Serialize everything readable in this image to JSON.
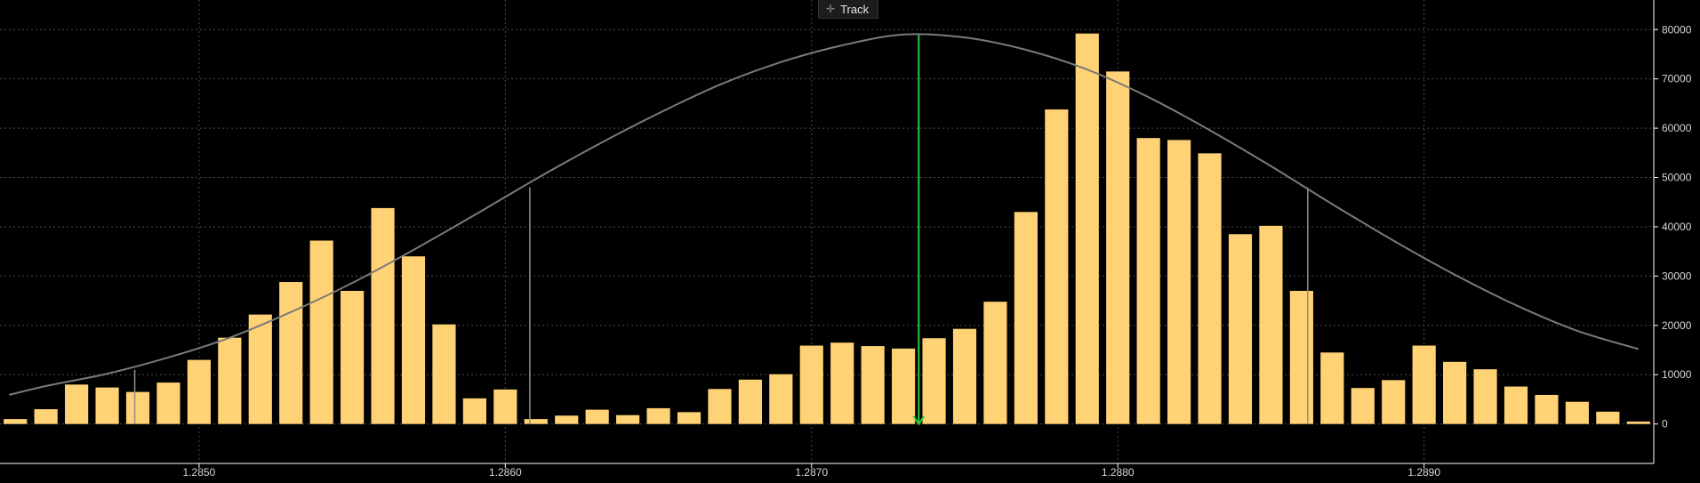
{
  "toolbar": {
    "track_label": "Track",
    "track_icon": "crosshair-icon"
  },
  "colors": {
    "bar": "#FFD275",
    "curve": "#7a7a7a",
    "marker": "#2ecc40",
    "bands": "#8f8f8f",
    "axis": "#ffffff",
    "background": "#000000"
  },
  "chart_data": {
    "type": "bar",
    "title": "",
    "xlabel": "",
    "ylabel": "",
    "x_tick_labels": [
      "1.2850",
      "1.2860",
      "1.2870",
      "1.2880",
      "1.2890"
    ],
    "x_ticks": [
      1.285,
      1.286,
      1.287,
      1.288,
      1.289
    ],
    "y_tick_labels": [
      "0",
      "10000",
      "20000",
      "30000",
      "40000",
      "50000",
      "60000",
      "70000",
      "80000"
    ],
    "ylim": [
      -8000,
      86000
    ],
    "xlim": [
      1.28435,
      1.28975
    ],
    "grid": true,
    "bars": {
      "x": [
        1.2844,
        1.2845,
        1.2846,
        1.2847,
        1.2848,
        1.2849,
        1.285,
        1.2851,
        1.2852,
        1.2853,
        1.2854,
        1.2855,
        1.2856,
        1.2857,
        1.2858,
        1.2859,
        1.286,
        1.2861,
        1.2862,
        1.2863,
        1.2864,
        1.2865,
        1.2866,
        1.2867,
        1.2868,
        1.2869,
        1.287,
        1.2871,
        1.2872,
        1.2873,
        1.2874,
        1.2875,
        1.2876,
        1.2877,
        1.2878,
        1.2879,
        1.288,
        1.2881,
        1.2882,
        1.2883,
        1.2884,
        1.2885,
        1.2886,
        1.2887,
        1.2888,
        1.2889,
        1.289,
        1.2891,
        1.2892,
        1.2893,
        1.2894,
        1.2895,
        1.2896,
        1.2897
      ],
      "values": [
        1000,
        3000,
        8000,
        7400,
        6500,
        8400,
        13000,
        17500,
        22200,
        28800,
        37200,
        27000,
        43800,
        34000,
        20200,
        5200,
        7000,
        1000,
        1700,
        2900,
        1800,
        3200,
        2400,
        7100,
        9000,
        10100,
        15900,
        16500,
        15800,
        15300,
        17400,
        19300,
        24800,
        43000,
        63800,
        79200,
        71500,
        58000,
        57600,
        54900,
        38500,
        40200,
        27000,
        14500,
        7300,
        8900,
        15900,
        12600,
        11100,
        7600,
        5900,
        4500,
        2500,
        500
      ]
    },
    "distribution_curve": {
      "x": [
        1.28438,
        1.2845,
        1.2847,
        1.2849,
        1.2851,
        1.2853,
        1.2855,
        1.2857,
        1.2859,
        1.2861,
        1.2863,
        1.2865,
        1.2867,
        1.2869,
        1.2871,
        1.2873,
        1.2875,
        1.2877,
        1.2879,
        1.2881,
        1.2883,
        1.2885,
        1.2887,
        1.2889,
        1.2891,
        1.2893,
        1.2895,
        1.2897
      ],
      "values": [
        5900,
        7700,
        10200,
        13500,
        17500,
        22700,
        28600,
        35300,
        42400,
        49700,
        56600,
        63000,
        68800,
        73400,
        76800,
        79000,
        78400,
        75900,
        71900,
        66300,
        59600,
        52300,
        44600,
        37200,
        30300,
        24100,
        18900,
        15200
      ]
    },
    "mean_marker": {
      "x": 1.28735,
      "top": 79000
    },
    "band_lines": [
      {
        "x": 1.28479,
        "top": 11000
      },
      {
        "x": 1.28608,
        "top": 48000
      },
      {
        "x": 1.28862,
        "top": 48000
      }
    ]
  }
}
